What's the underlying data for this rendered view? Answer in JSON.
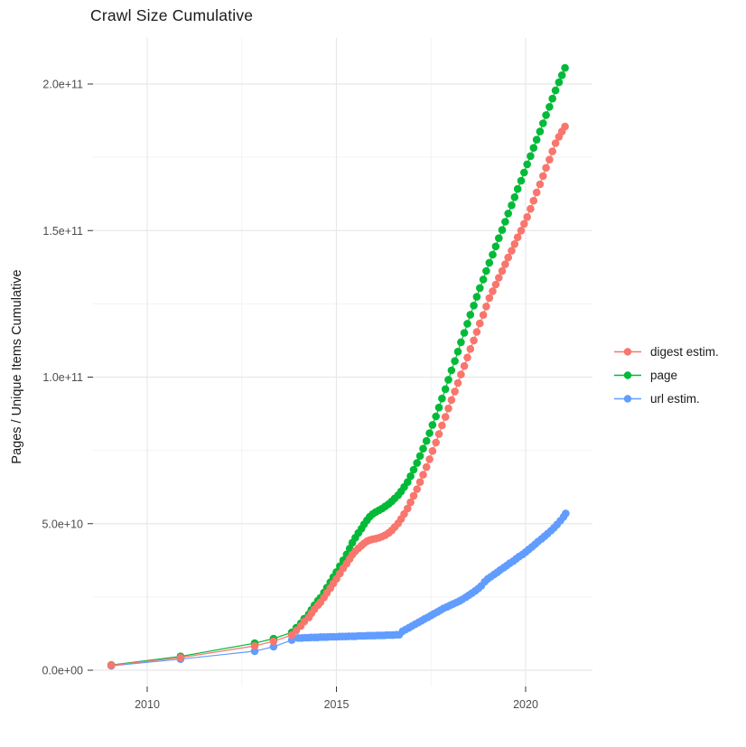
{
  "title": "Crawl Size Cumulative",
  "axes": {
    "y_title": "Pages / Unique Items Cumulative",
    "x_ticks": [
      {
        "label": "2010",
        "year": 2010
      },
      {
        "label": "2015",
        "year": 2015
      },
      {
        "label": "2020",
        "year": 2020
      }
    ],
    "y_ticks": [
      {
        "label": "0.0e+00",
        "value": 0
      },
      {
        "label": "5.0e+10",
        "value": 50
      },
      {
        "label": "1.0e+11",
        "value": 100
      },
      {
        "label": "1.5e+11",
        "value": 150
      },
      {
        "label": "2.0e+11",
        "value": 200
      }
    ]
  },
  "legend": [
    {
      "label": "digest estim.",
      "color": "#F8766D"
    },
    {
      "label": "page",
      "color": "#00BA38"
    },
    {
      "label": "url estim.",
      "color": "#619CFF"
    }
  ],
  "chart_data": {
    "type": "scatter",
    "style": "points-with-line",
    "title": "Crawl Size Cumulative",
    "xlabel": "",
    "ylabel": "Pages / Unique Items Cumulative",
    "x_unit": "year (decimal)",
    "value_scale": 1000000000,
    "xlim": [
      2008.55,
      2021.75
    ],
    "ylim": [
      0,
      215
    ],
    "grid": true,
    "legend_position": "right-center",
    "series": [
      {
        "name": "digest estim.",
        "color": "#F8766D",
        "points": [
          [
            2009.05,
            1.7
          ],
          [
            2010.88,
            4.3
          ],
          [
            2012.84,
            8.3
          ],
          [
            2013.34,
            9.9
          ],
          [
            2013.82,
            12.0
          ],
          [
            2013.94,
            13.6
          ],
          [
            2014.06,
            15.1
          ],
          [
            2014.15,
            16.6
          ],
          [
            2014.27,
            18.0
          ],
          [
            2014.34,
            19.4
          ],
          [
            2014.42,
            20.8
          ],
          [
            2014.51,
            22.2
          ],
          [
            2014.58,
            23.2
          ],
          [
            2014.67,
            24.8
          ],
          [
            2014.75,
            26.4
          ],
          [
            2014.84,
            28.0
          ],
          [
            2014.92,
            29.6
          ],
          [
            2015.0,
            31.2
          ],
          [
            2015.09,
            33.0
          ],
          [
            2015.18,
            34.8
          ],
          [
            2015.27,
            36.4
          ],
          [
            2015.35,
            38.0
          ],
          [
            2015.42,
            39.4
          ],
          [
            2015.5,
            40.6
          ],
          [
            2015.58,
            41.6
          ],
          [
            2015.66,
            42.5
          ],
          [
            2015.73,
            43.3
          ],
          [
            2015.81,
            44.0
          ],
          [
            2015.88,
            44.4
          ],
          [
            2015.96,
            44.7
          ],
          [
            2016.04,
            44.9
          ],
          [
            2016.13,
            45.2
          ],
          [
            2016.21,
            45.6
          ],
          [
            2016.29,
            46.1
          ],
          [
            2016.38,
            46.8
          ],
          [
            2016.46,
            47.7
          ],
          [
            2016.54,
            48.8
          ],
          [
            2016.63,
            50.1
          ],
          [
            2016.71,
            51.6
          ],
          [
            2016.79,
            53.3
          ],
          [
            2016.88,
            55.2
          ],
          [
            2016.96,
            57.3
          ],
          [
            2017.04,
            59.5
          ],
          [
            2017.13,
            61.8
          ],
          [
            2017.21,
            64.2
          ],
          [
            2017.29,
            66.7
          ],
          [
            2017.38,
            69.3
          ],
          [
            2017.46,
            72.0
          ],
          [
            2017.54,
            74.8
          ],
          [
            2017.63,
            77.7
          ],
          [
            2017.71,
            80.6
          ],
          [
            2017.79,
            83.5
          ],
          [
            2017.88,
            86.4
          ],
          [
            2017.96,
            89.3
          ],
          [
            2018.04,
            92.2
          ],
          [
            2018.13,
            95.1
          ],
          [
            2018.21,
            98.0
          ],
          [
            2018.29,
            100.9
          ],
          [
            2018.38,
            103.8
          ],
          [
            2018.46,
            106.7
          ],
          [
            2018.54,
            109.6
          ],
          [
            2018.63,
            112.5
          ],
          [
            2018.71,
            115.4
          ],
          [
            2018.79,
            118.3
          ],
          [
            2018.88,
            121.2
          ],
          [
            2018.96,
            124.1
          ],
          [
            2019.04,
            127.0
          ],
          [
            2019.13,
            129.3
          ],
          [
            2019.21,
            131.6
          ],
          [
            2019.29,
            133.9
          ],
          [
            2019.38,
            136.2
          ],
          [
            2019.46,
            138.5
          ],
          [
            2019.54,
            140.8
          ],
          [
            2019.63,
            143.1
          ],
          [
            2019.71,
            145.4
          ],
          [
            2019.79,
            147.7
          ],
          [
            2019.88,
            150.0
          ],
          [
            2019.96,
            152.3
          ],
          [
            2020.04,
            154.6
          ],
          [
            2020.13,
            157.4
          ],
          [
            2020.21,
            160.2
          ],
          [
            2020.29,
            163.0
          ],
          [
            2020.38,
            165.8
          ],
          [
            2020.46,
            168.6
          ],
          [
            2020.54,
            171.4
          ],
          [
            2020.63,
            174.2
          ],
          [
            2020.71,
            177.0
          ],
          [
            2020.79,
            179.8
          ],
          [
            2020.88,
            182.0
          ],
          [
            2020.96,
            183.8
          ],
          [
            2021.04,
            185.5
          ]
        ]
      },
      {
        "name": "page",
        "color": "#00BA38",
        "points": [
          [
            2009.05,
            1.8
          ],
          [
            2010.88,
            4.7
          ],
          [
            2012.84,
            9.2
          ],
          [
            2013.34,
            10.8
          ],
          [
            2013.82,
            12.9
          ],
          [
            2013.94,
            14.5
          ],
          [
            2014.06,
            16.0
          ],
          [
            2014.15,
            17.6
          ],
          [
            2014.27,
            19.1
          ],
          [
            2014.34,
            20.6
          ],
          [
            2014.42,
            22.2
          ],
          [
            2014.51,
            23.7
          ],
          [
            2014.58,
            24.7
          ],
          [
            2014.67,
            26.5
          ],
          [
            2014.75,
            28.2
          ],
          [
            2014.84,
            30.0
          ],
          [
            2014.92,
            31.8
          ],
          [
            2015.0,
            33.5
          ],
          [
            2015.09,
            35.5
          ],
          [
            2015.18,
            37.5
          ],
          [
            2015.27,
            39.5
          ],
          [
            2015.35,
            41.5
          ],
          [
            2015.42,
            43.5
          ],
          [
            2015.5,
            45.2
          ],
          [
            2015.58,
            46.8
          ],
          [
            2015.66,
            48.3
          ],
          [
            2015.73,
            49.8
          ],
          [
            2015.81,
            51.2
          ],
          [
            2015.88,
            52.4
          ],
          [
            2015.96,
            53.3
          ],
          [
            2016.04,
            54.0
          ],
          [
            2016.13,
            54.6
          ],
          [
            2016.21,
            55.2
          ],
          [
            2016.29,
            55.9
          ],
          [
            2016.38,
            56.7
          ],
          [
            2016.46,
            57.6
          ],
          [
            2016.54,
            58.6
          ],
          [
            2016.63,
            59.7
          ],
          [
            2016.71,
            61.0
          ],
          [
            2016.79,
            62.5
          ],
          [
            2016.88,
            64.2
          ],
          [
            2016.96,
            66.2
          ],
          [
            2017.04,
            68.4
          ],
          [
            2017.13,
            70.7
          ],
          [
            2017.21,
            73.1
          ],
          [
            2017.29,
            75.6
          ],
          [
            2017.38,
            78.2
          ],
          [
            2017.46,
            80.9
          ],
          [
            2017.54,
            83.7
          ],
          [
            2017.63,
            86.6
          ],
          [
            2017.71,
            89.6
          ],
          [
            2017.79,
            92.7
          ],
          [
            2017.88,
            95.9
          ],
          [
            2017.96,
            99.1
          ],
          [
            2018.04,
            102.3
          ],
          [
            2018.13,
            105.5
          ],
          [
            2018.21,
            108.7
          ],
          [
            2018.29,
            111.9
          ],
          [
            2018.38,
            115.1
          ],
          [
            2018.46,
            118.2
          ],
          [
            2018.54,
            121.3
          ],
          [
            2018.63,
            124.4
          ],
          [
            2018.71,
            127.4
          ],
          [
            2018.79,
            130.4
          ],
          [
            2018.88,
            133.3
          ],
          [
            2018.96,
            136.2
          ],
          [
            2019.04,
            139.0
          ],
          [
            2019.13,
            141.8
          ],
          [
            2019.21,
            144.6
          ],
          [
            2019.29,
            147.4
          ],
          [
            2019.38,
            150.2
          ],
          [
            2019.46,
            153.0
          ],
          [
            2019.54,
            155.8
          ],
          [
            2019.63,
            158.6
          ],
          [
            2019.71,
            161.4
          ],
          [
            2019.79,
            164.2
          ],
          [
            2019.88,
            167.0
          ],
          [
            2019.96,
            169.8
          ],
          [
            2020.04,
            172.6
          ],
          [
            2020.13,
            175.4
          ],
          [
            2020.21,
            178.2
          ],
          [
            2020.29,
            181.0
          ],
          [
            2020.38,
            183.8
          ],
          [
            2020.46,
            186.6
          ],
          [
            2020.54,
            189.4
          ],
          [
            2020.63,
            192.2
          ],
          [
            2020.71,
            195.0
          ],
          [
            2020.79,
            197.8
          ],
          [
            2020.88,
            200.6
          ],
          [
            2020.96,
            203.0
          ],
          [
            2021.04,
            205.5
          ]
        ]
      },
      {
        "name": "url estim.",
        "color": "#619CFF",
        "points": [
          [
            2009.05,
            1.5
          ],
          [
            2010.88,
            3.8
          ],
          [
            2012.84,
            6.5
          ],
          [
            2013.34,
            8.0
          ],
          [
            2013.82,
            10.3
          ],
          [
            2013.99,
            11.0
          ],
          [
            2014.08,
            11.0
          ],
          [
            2014.16,
            11.1
          ],
          [
            2014.25,
            11.1
          ],
          [
            2014.33,
            11.2
          ],
          [
            2014.42,
            11.2
          ],
          [
            2014.5,
            11.2
          ],
          [
            2014.58,
            11.3
          ],
          [
            2014.66,
            11.3
          ],
          [
            2014.75,
            11.3
          ],
          [
            2014.83,
            11.4
          ],
          [
            2014.92,
            11.4
          ],
          [
            2015.0,
            11.4
          ],
          [
            2015.08,
            11.5
          ],
          [
            2015.16,
            11.5
          ],
          [
            2015.25,
            11.5
          ],
          [
            2015.33,
            11.6
          ],
          [
            2015.42,
            11.6
          ],
          [
            2015.5,
            11.6
          ],
          [
            2015.58,
            11.7
          ],
          [
            2015.66,
            11.7
          ],
          [
            2015.75,
            11.7
          ],
          [
            2015.83,
            11.8
          ],
          [
            2015.92,
            11.8
          ],
          [
            2016.0,
            11.8
          ],
          [
            2016.08,
            11.9
          ],
          [
            2016.16,
            11.9
          ],
          [
            2016.25,
            11.9
          ],
          [
            2016.33,
            12.0
          ],
          [
            2016.42,
            12.0
          ],
          [
            2016.5,
            12.0
          ],
          [
            2016.58,
            12.1
          ],
          [
            2016.66,
            12.1
          ],
          [
            2016.75,
            13.3
          ],
          [
            2016.83,
            13.9
          ],
          [
            2016.92,
            14.5
          ],
          [
            2017.0,
            15.1
          ],
          [
            2017.08,
            15.7
          ],
          [
            2017.17,
            16.3
          ],
          [
            2017.25,
            16.9
          ],
          [
            2017.33,
            17.5
          ],
          [
            2017.42,
            18.1
          ],
          [
            2017.5,
            18.7
          ],
          [
            2017.58,
            19.3
          ],
          [
            2017.67,
            19.9
          ],
          [
            2017.75,
            20.5
          ],
          [
            2017.83,
            21.1
          ],
          [
            2017.92,
            21.6
          ],
          [
            2018.0,
            22.1
          ],
          [
            2018.08,
            22.6
          ],
          [
            2018.17,
            23.1
          ],
          [
            2018.25,
            23.6
          ],
          [
            2018.33,
            24.2
          ],
          [
            2018.42,
            24.9
          ],
          [
            2018.5,
            25.6
          ],
          [
            2018.58,
            26.3
          ],
          [
            2018.67,
            27.1
          ],
          [
            2018.75,
            27.9
          ],
          [
            2018.83,
            28.8
          ],
          [
            2018.92,
            30.2
          ],
          [
            2019.0,
            31.2
          ],
          [
            2019.08,
            31.9
          ],
          [
            2019.17,
            32.7
          ],
          [
            2019.25,
            33.4
          ],
          [
            2019.33,
            34.2
          ],
          [
            2019.42,
            35.0
          ],
          [
            2019.5,
            35.7
          ],
          [
            2019.58,
            36.5
          ],
          [
            2019.67,
            37.2
          ],
          [
            2019.75,
            38.0
          ],
          [
            2019.83,
            38.8
          ],
          [
            2019.92,
            39.5
          ],
          [
            2020.0,
            40.3
          ],
          [
            2020.08,
            41.2
          ],
          [
            2020.17,
            42.1
          ],
          [
            2020.25,
            43.0
          ],
          [
            2020.33,
            43.9
          ],
          [
            2020.42,
            44.8
          ],
          [
            2020.5,
            45.7
          ],
          [
            2020.58,
            46.6
          ],
          [
            2020.67,
            47.6
          ],
          [
            2020.75,
            48.6
          ],
          [
            2020.83,
            49.7
          ],
          [
            2020.92,
            51.0
          ],
          [
            2021.0,
            52.3
          ],
          [
            2021.06,
            53.5
          ]
        ]
      }
    ]
  }
}
